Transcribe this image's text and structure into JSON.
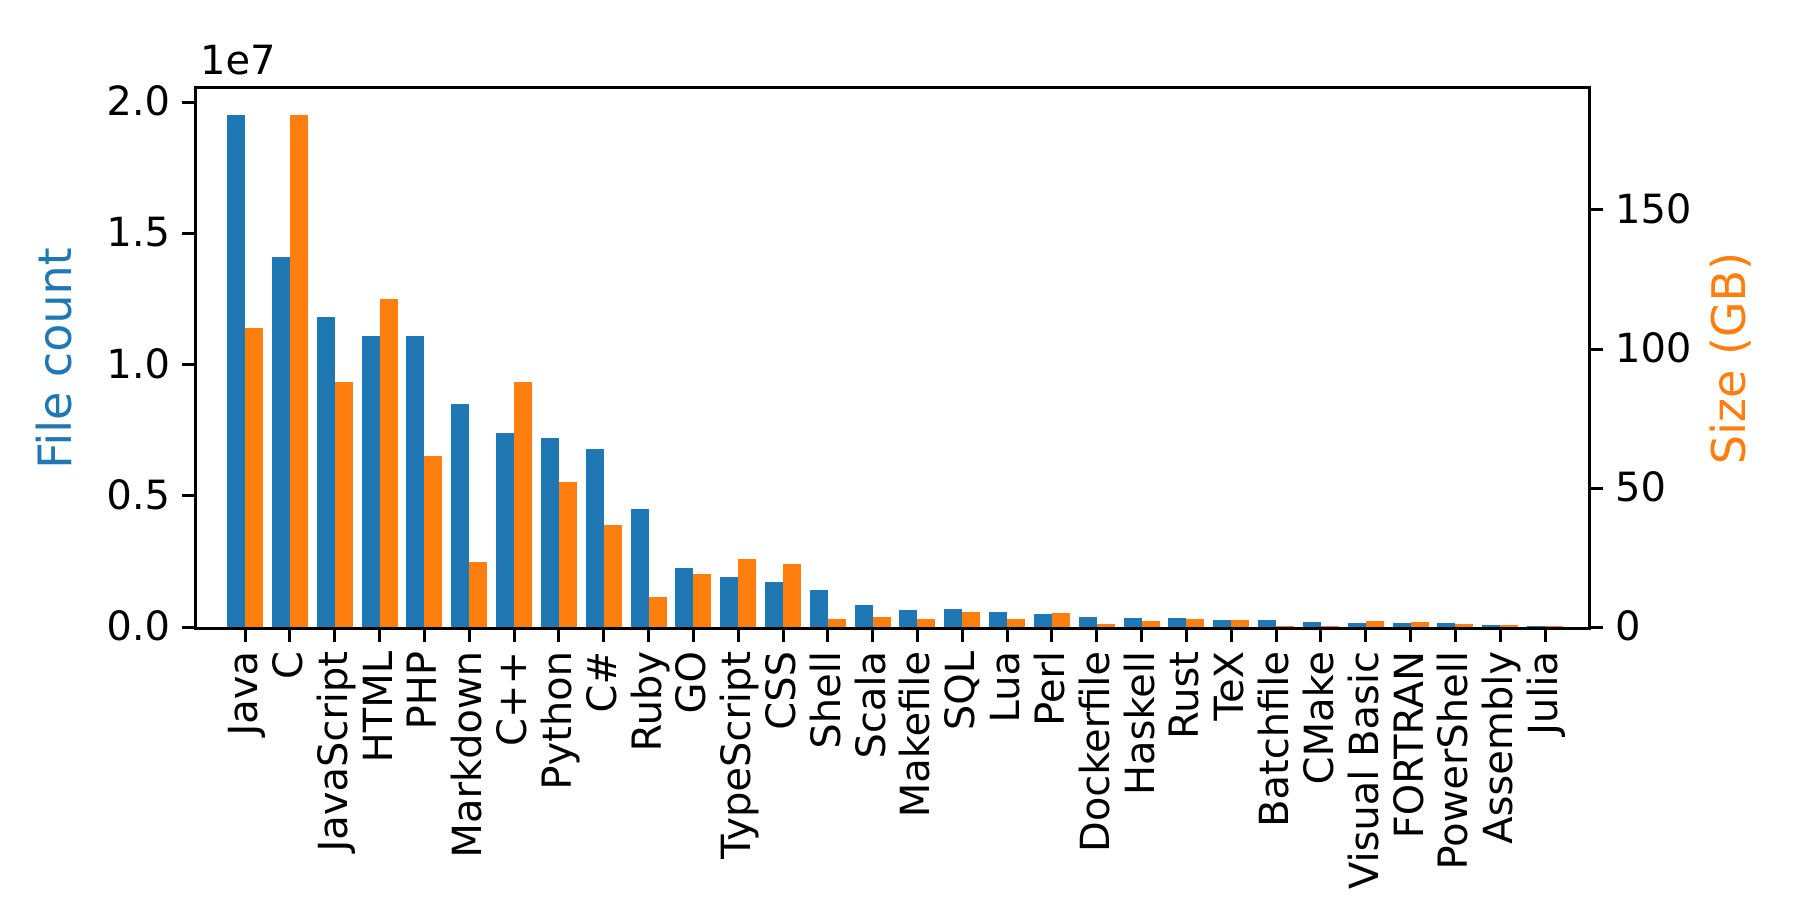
{
  "chart_data": {
    "type": "bar",
    "title": "",
    "grid": false,
    "legend": "none",
    "categories": [
      "Java",
      "C",
      "JavaScript",
      "HTML",
      "PHP",
      "Markdown",
      "C++",
      "Python",
      "C#",
      "Ruby",
      "GO",
      "TypeScript",
      "CSS",
      "Shell",
      "Scala",
      "Makefile",
      "SQL",
      "Lua",
      "Perl",
      "Dockerfile",
      "Haskell",
      "Rust",
      "TeX",
      "Batchfile",
      "CMake",
      "Visual Basic",
      "FORTRAN",
      "PowerShell",
      "Assembly",
      "Julia"
    ],
    "series": [
      {
        "name": "File count",
        "axis": "left",
        "color": "#1f77b4",
        "unit": "files (x 1e7)",
        "values": [
          1.95,
          1.41,
          1.18,
          1.11,
          1.11,
          0.85,
          0.74,
          0.72,
          0.68,
          0.45,
          0.225,
          0.19,
          0.17,
          0.14,
          0.082,
          0.066,
          0.068,
          0.058,
          0.051,
          0.037,
          0.033,
          0.034,
          0.025,
          0.027,
          0.018,
          0.017,
          0.014,
          0.014,
          0.007,
          0.005
        ]
      },
      {
        "name": "Size (GB)",
        "axis": "right",
        "color": "#ff7f0e",
        "unit": "GB",
        "values": [
          107.5,
          184,
          88,
          118,
          61.5,
          23.3,
          88,
          52,
          36.8,
          10.9,
          19.2,
          24.5,
          22.7,
          2.9,
          3.7,
          3.0,
          5.5,
          2.8,
          4.9,
          1.1,
          2.1,
          2.7,
          2.4,
          0.4,
          0.4,
          2.2,
          1.9,
          0.9,
          0.7,
          0.3
        ]
      }
    ],
    "left_axis": {
      "label": "File count",
      "color": "#1f77b4",
      "offset_label": "1e7",
      "tick_labels": [
        "0.0",
        "0.5",
        "1.0",
        "1.5",
        "2.0"
      ],
      "tick_values": [
        0,
        0.5,
        1.0,
        1.5,
        2.0
      ],
      "ylim": [
        0,
        2.05
      ]
    },
    "right_axis": {
      "label": "Size (GB)",
      "color": "#ff7f0e",
      "tick_labels": [
        "0",
        "50",
        "100",
        "150"
      ],
      "tick_values": [
        0,
        50,
        100,
        150
      ],
      "ylim": [
        0,
        193.5
      ]
    }
  }
}
